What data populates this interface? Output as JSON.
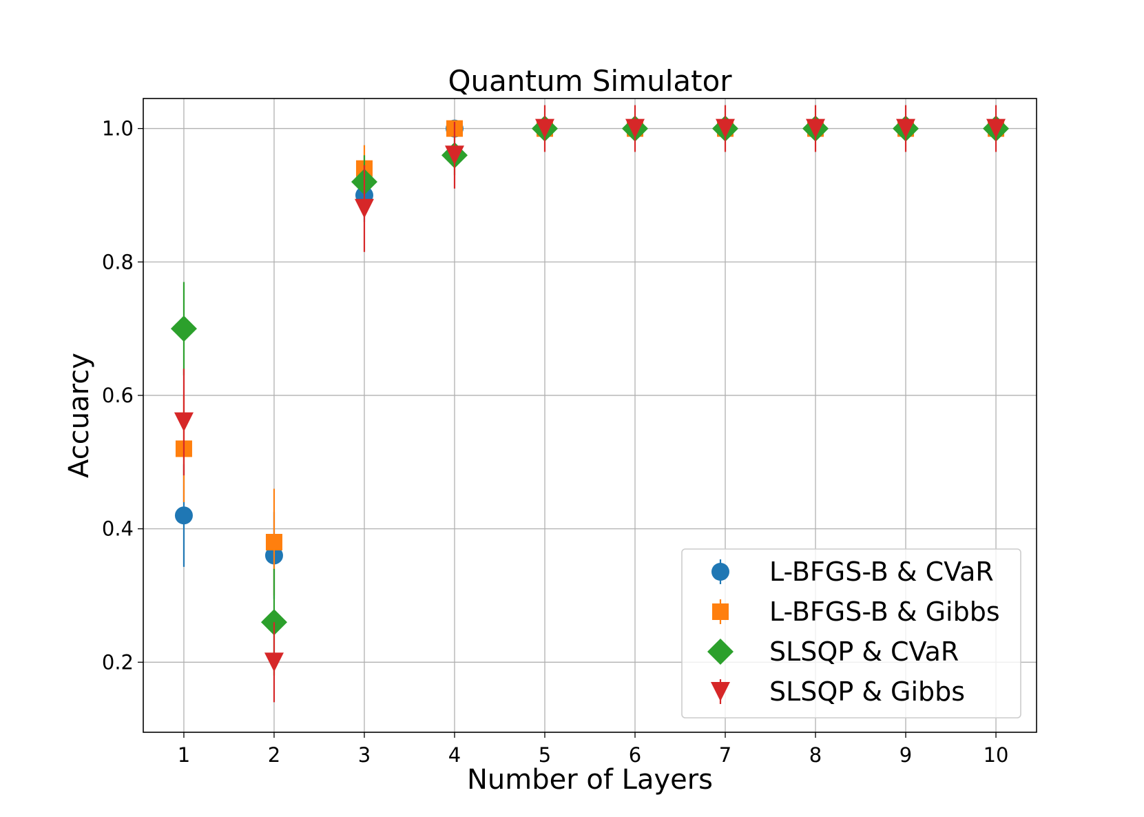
{
  "chart_data": {
    "type": "scatter",
    "title": "Quantum Simulator",
    "xlabel": "Number of Layers",
    "ylabel": "Accuarcy",
    "x": [
      1,
      2,
      3,
      4,
      5,
      6,
      7,
      8,
      9,
      10
    ],
    "xlim": [
      0.55,
      10.45
    ],
    "ylim": [
      0.095,
      1.045
    ],
    "xticks": [
      1,
      2,
      3,
      4,
      5,
      6,
      7,
      8,
      9,
      10
    ],
    "yticks": [
      0.2,
      0.4,
      0.6,
      0.8,
      1.0
    ],
    "ytick_labels": [
      "0.2",
      "0.4",
      "0.6",
      "0.8",
      "1.0"
    ],
    "grid": true,
    "legend_position": "lower-right",
    "series": [
      {
        "name": "L-BFGS-B & CVaR",
        "marker": "circle",
        "color": "#1f77b4",
        "values": [
          0.42,
          0.36,
          0.9,
          1.0,
          1.0,
          1.0,
          1.0,
          1.0,
          1.0,
          1.0
        ],
        "errors": [
          0.077,
          0.065,
          0.04,
          0.0,
          0.0,
          0.0,
          0.0,
          0.0,
          0.0,
          0.0
        ]
      },
      {
        "name": "L-BFGS-B & Gibbs",
        "marker": "square",
        "color": "#ff7f0e",
        "values": [
          0.52,
          0.38,
          0.94,
          1.0,
          1.0,
          1.0,
          1.0,
          1.0,
          1.0,
          1.0
        ],
        "errors": [
          0.08,
          0.08,
          0.035,
          0.0,
          0.0,
          0.0,
          0.0,
          0.0,
          0.0,
          0.0
        ]
      },
      {
        "name": "SLSQP & CVaR",
        "marker": "diamond",
        "color": "#2ca02c",
        "values": [
          0.7,
          0.26,
          0.92,
          0.96,
          1.0,
          1.0,
          1.0,
          1.0,
          1.0,
          1.0
        ],
        "errors": [
          0.07,
          0.08,
          0.04,
          0.03,
          0.0,
          0.0,
          0.0,
          0.0,
          0.0,
          0.0
        ]
      },
      {
        "name": "SLSQP & Gibbs",
        "marker": "triangle-down",
        "color": "#d62728",
        "values": [
          0.56,
          0.2,
          0.88,
          0.96,
          1.0,
          1.0,
          1.0,
          1.0,
          1.0,
          1.0
        ],
        "errors": [
          0.08,
          0.06,
          0.065,
          0.05,
          0.035,
          0.035,
          0.035,
          0.035,
          0.035,
          0.035
        ]
      }
    ]
  },
  "colors": {
    "grid": "#b0b0b0",
    "axes": "#000000",
    "legend_border": "#cccccc"
  }
}
